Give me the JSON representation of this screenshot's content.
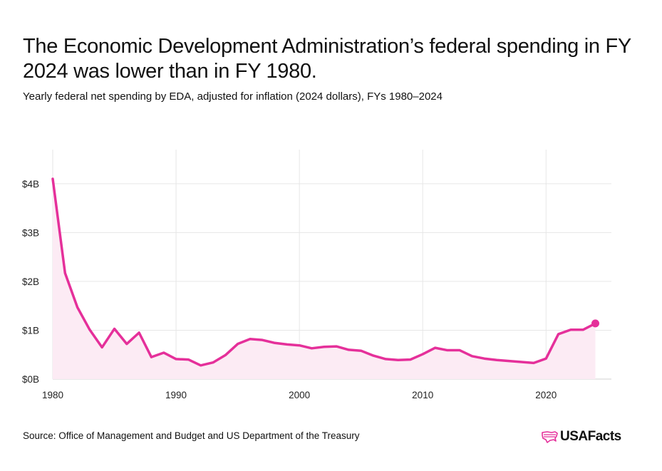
{
  "header": {
    "title": "The Economic Development Administration’s federal spending in FY 2024 was lower than in FY 1980.",
    "subtitle": "Yearly federal net spending by EDA, adjusted for inflation (2024 dollars), FYs 1980–2024"
  },
  "footer": {
    "source": "Source: Office of Management and Budget and US Department of the Treasury",
    "brand": "USAFacts"
  },
  "colors": {
    "line": "#e5309a",
    "area": "#fcebf4",
    "grid": "#e6e6e6",
    "axis_text": "#222222"
  },
  "chart_data": {
    "type": "area",
    "x": [
      1980,
      1981,
      1982,
      1983,
      1984,
      1985,
      1986,
      1987,
      1988,
      1989,
      1990,
      1991,
      1992,
      1993,
      1994,
      1995,
      1996,
      1997,
      1998,
      1999,
      2000,
      2001,
      2002,
      2003,
      2004,
      2005,
      2006,
      2007,
      2008,
      2009,
      2010,
      2011,
      2012,
      2013,
      2014,
      2015,
      2016,
      2017,
      2018,
      2019,
      2020,
      2021,
      2022,
      2023,
      2024
    ],
    "series": [
      {
        "values": [
          4.1,
          2.17,
          1.47,
          1.01,
          0.65,
          1.03,
          0.72,
          0.95,
          0.45,
          0.54,
          0.41,
          0.4,
          0.28,
          0.34,
          0.49,
          0.72,
          0.82,
          0.8,
          0.74,
          0.71,
          0.69,
          0.63,
          0.66,
          0.67,
          0.6,
          0.58,
          0.48,
          0.41,
          0.39,
          0.4,
          0.51,
          0.64,
          0.59,
          0.59,
          0.47,
          0.42,
          0.39,
          0.37,
          0.35,
          0.33,
          0.42,
          0.92,
          1.01,
          1.01,
          1.14
        ]
      }
    ],
    "x_ticks": [
      1980,
      1990,
      2000,
      2010,
      2020
    ],
    "x_tick_labels": [
      "1980",
      "1990",
      "2000",
      "2010",
      "2020"
    ],
    "y_ticks": [
      0,
      1,
      2,
      3,
      4
    ],
    "y_tick_labels": [
      "$0B",
      "$1B",
      "$2B",
      "$3B",
      "$4B"
    ],
    "xlim": [
      1980,
      2025.3
    ],
    "ylim": [
      0,
      4.1
    ],
    "xlabel": "",
    "ylabel": "",
    "grid": true,
    "highlight_last_point": true
  }
}
